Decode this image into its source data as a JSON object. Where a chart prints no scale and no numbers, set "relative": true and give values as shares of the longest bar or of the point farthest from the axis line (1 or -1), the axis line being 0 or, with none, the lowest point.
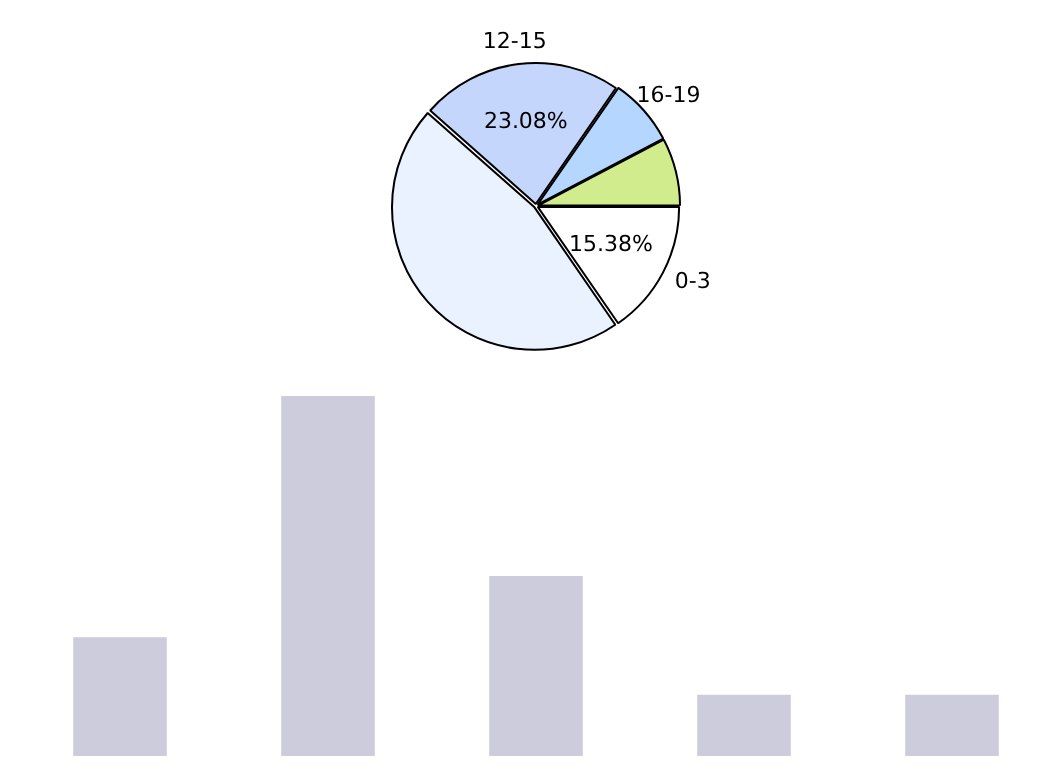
{
  "chart_data": [
    {
      "type": "pie",
      "categories": [
        "0-3",
        null,
        "12-15",
        "16-19",
        null
      ],
      "values": [
        15.38,
        46.16,
        23.08,
        7.69,
        7.69
      ],
      "colors": [
        "#ffffff",
        "#eaf1ff",
        "#c4d6fc",
        "#b4d6ff",
        "#d0ec8c"
      ],
      "value_labels": [
        "15.38%",
        null,
        "23.08%",
        null,
        null
      ],
      "legend": false
    },
    {
      "type": "bar",
      "categories": [
        null,
        null,
        null,
        null,
        null
      ],
      "values": [
        0.33,
        1,
        0.5,
        0.17,
        0.17
      ],
      "color": "#ccccdd",
      "relative": true,
      "grid": false,
      "legend": false
    }
  ]
}
